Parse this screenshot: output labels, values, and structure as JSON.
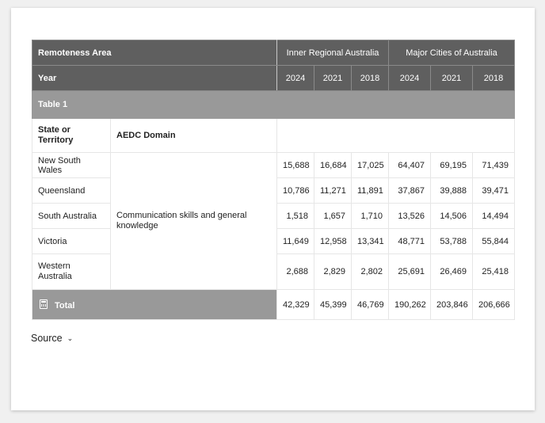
{
  "header": {
    "remoteness_label": "Remoteness Area",
    "year_label": "Year",
    "regions": [
      "Inner Regional Australia",
      "Major Cities of Australia"
    ],
    "years": [
      "2024",
      "2021",
      "2018",
      "2024",
      "2021",
      "2018"
    ]
  },
  "group_label": "Table 1",
  "subheader": {
    "state": "State or Territory",
    "domain": "AEDC Domain"
  },
  "domain_value": "Communication skills and general knowledge",
  "rows": [
    {
      "state": "New South Wales",
      "values": [
        "15,688",
        "16,684",
        "17,025",
        "64,407",
        "69,195",
        "71,439"
      ]
    },
    {
      "state": "Queensland",
      "values": [
        "10,786",
        "11,271",
        "11,891",
        "37,867",
        "39,888",
        "39,471"
      ]
    },
    {
      "state": "South Australia",
      "values": [
        "1,518",
        "1,657",
        "1,710",
        "13,526",
        "14,506",
        "14,494"
      ]
    },
    {
      "state": "Victoria",
      "values": [
        "11,649",
        "12,958",
        "13,341",
        "48,771",
        "53,788",
        "55,844"
      ]
    },
    {
      "state": "Western Australia",
      "values": [
        "2,688",
        "2,829",
        "2,802",
        "25,691",
        "26,469",
        "25,418"
      ]
    }
  ],
  "total": {
    "label": "Total",
    "icon": "calculator-icon",
    "values": [
      "42,329",
      "45,399",
      "46,769",
      "190,262",
      "203,846",
      "206,666"
    ]
  },
  "source_label": "Source"
}
